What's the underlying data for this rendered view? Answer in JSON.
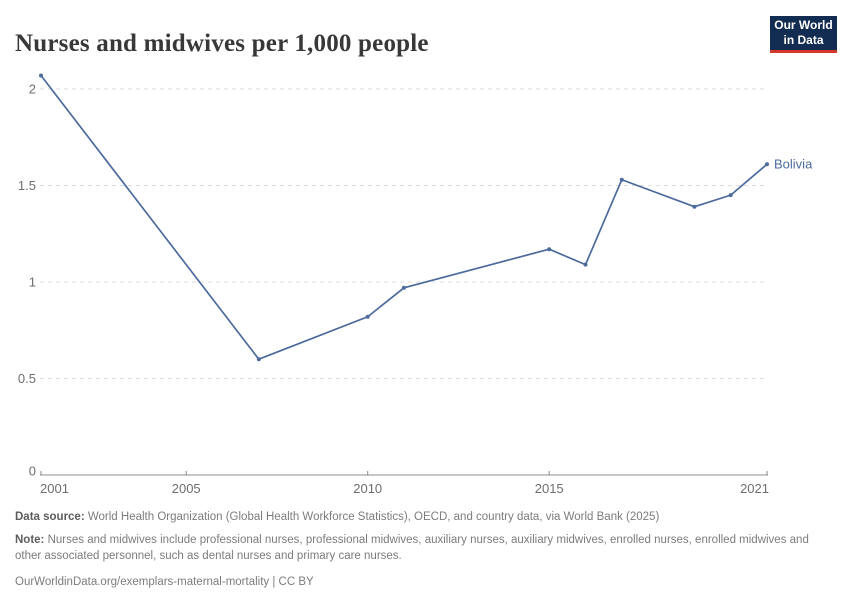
{
  "header": {
    "title": "Nurses and midwives per 1,000 people",
    "logo": {
      "line1": "Our World",
      "line2": "in Data"
    }
  },
  "chart_data": {
    "type": "line",
    "title": "Nurses and midwives per 1,000 people",
    "x": [
      2001,
      2007,
      2010,
      2011,
      2015,
      2016,
      2017,
      2019,
      2020,
      2021
    ],
    "series": [
      {
        "name": "Bolivia",
        "color": "#4c6a9c",
        "values": [
          2.07,
          0.6,
          0.82,
          0.97,
          1.17,
          1.09,
          1.53,
          1.39,
          1.45,
          1.61
        ]
      }
    ],
    "xlabel": "",
    "ylabel": "",
    "x_ticks": [
      2001,
      2005,
      2010,
      2015,
      2021
    ],
    "y_ticks": [
      0,
      0.5,
      1,
      1.5,
      2
    ],
    "xlim": [
      2001,
      2021
    ],
    "ylim": [
      0,
      2.07
    ],
    "grid": "horizontal-dashed",
    "legend_position": "end-of-line-label",
    "colors": {
      "line": "#4c6a9c",
      "grid": "#dcdcdc",
      "axis": "#8c8c8c",
      "tick_text": "#6e6e6e"
    }
  },
  "footer": {
    "data_source_label": "Data source:",
    "data_source": " World Health Organization (Global Health Workforce Statistics), OECD, and country data, via World Bank (2025)",
    "note_label": "Note:",
    "note": " Nurses and midwives include professional nurses, professional midwives, auxiliary nurses, auxiliary midwives, enrolled nurses, enrolled midwives and other associated personnel, such as dental nurses and primary care nurses.",
    "link": "OurWorldinData.org/exemplars-maternal-mortality | CC BY"
  }
}
